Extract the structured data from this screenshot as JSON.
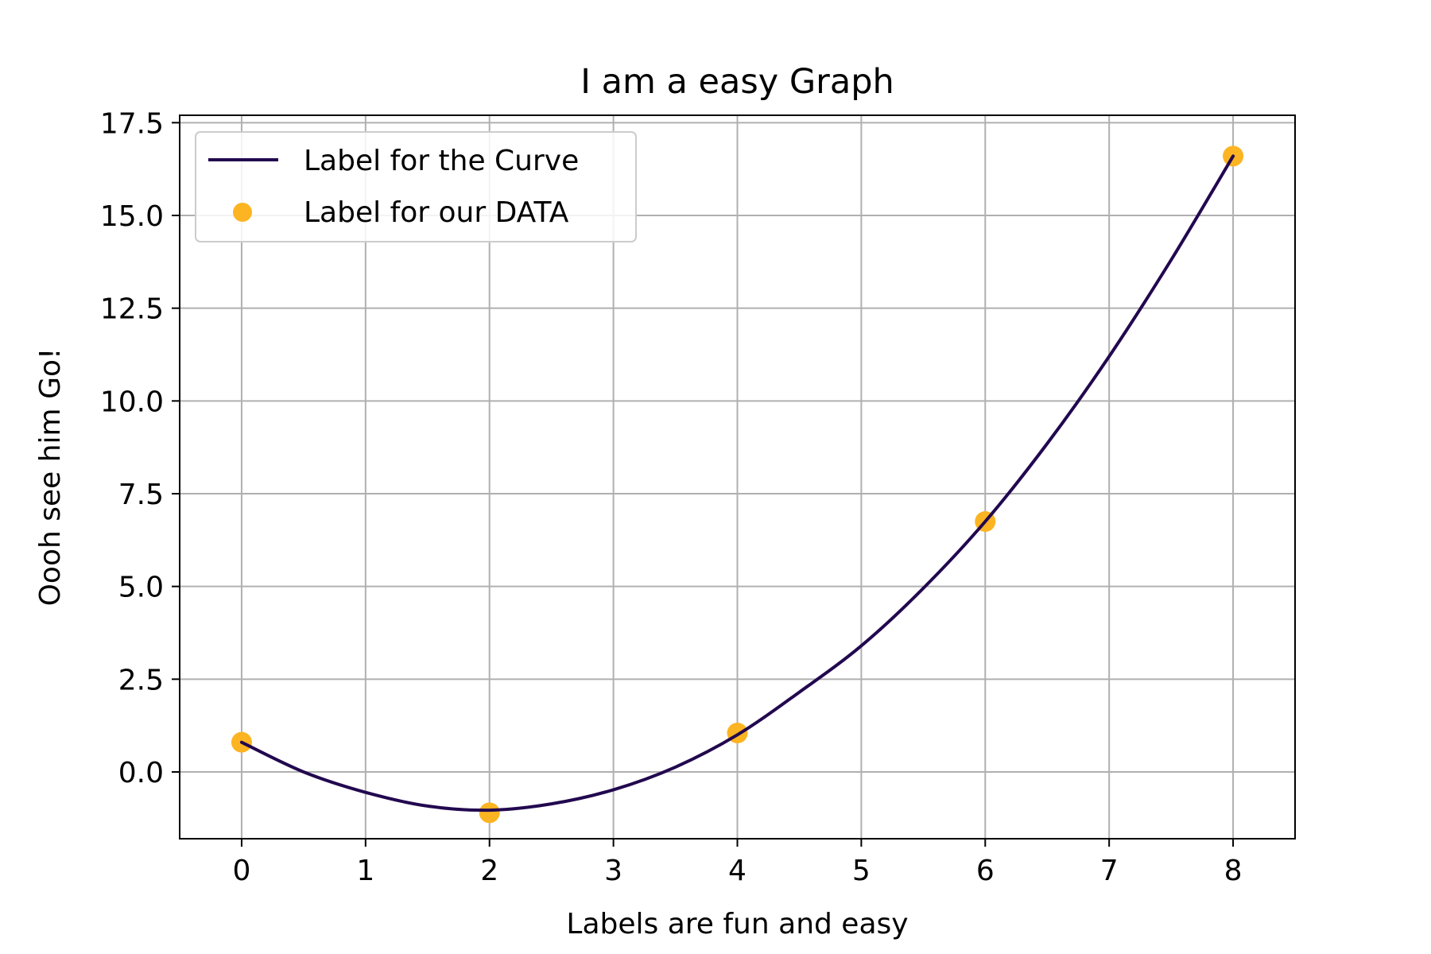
{
  "chart_data": {
    "type": "line",
    "title": "I am a easy Graph",
    "xlabel": "Labels are fun and easy",
    "ylabel": "Oooh see him Go!",
    "xlim": [
      -0.5,
      8.5
    ],
    "ylim": [
      -1.8,
      17.7
    ],
    "xticks": [
      0,
      1,
      2,
      3,
      4,
      5,
      6,
      7,
      8
    ],
    "xtick_labels": [
      "0",
      "1",
      "2",
      "3",
      "4",
      "5",
      "6",
      "7",
      "8"
    ],
    "yticks": [
      0,
      2.5,
      5,
      7.5,
      10,
      12.5,
      15,
      17.5
    ],
    "ytick_labels": [
      "0.0",
      "2.5",
      "5.0",
      "7.5",
      "10.0",
      "12.5",
      "15.0",
      "17.5"
    ],
    "grid": true,
    "legend_position": "top-left",
    "series": [
      {
        "name": "Label for the Curve",
        "kind": "line",
        "color": "#22084f",
        "x": [
          0,
          0.5,
          1,
          1.5,
          2,
          2.5,
          3,
          3.5,
          4,
          4.5,
          5,
          5.5,
          6,
          6.5,
          7,
          7.5,
          8
        ],
        "y": [
          0.8,
          0.0,
          -0.55,
          -0.92,
          -1.03,
          -0.86,
          -0.48,
          0.13,
          1.0,
          2.15,
          3.4,
          4.95,
          6.75,
          8.85,
          11.2,
          13.8,
          16.6
        ]
      },
      {
        "name": "Label for our DATA",
        "kind": "scatter",
        "color": "#fcb422",
        "x": [
          0,
          2,
          4,
          6,
          8
        ],
        "y": [
          0.8,
          -1.1,
          1.05,
          6.75,
          16.6
        ]
      }
    ]
  }
}
